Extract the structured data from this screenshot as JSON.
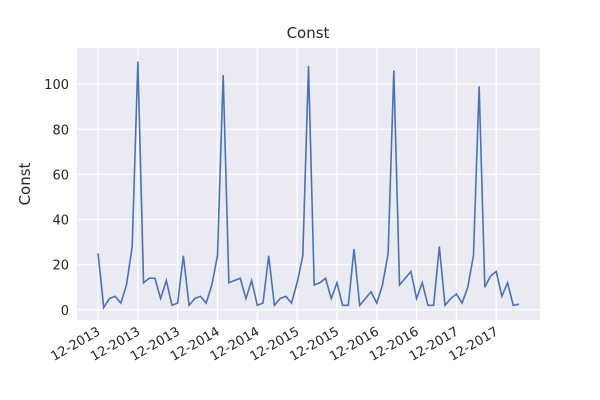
{
  "chart_data": {
    "type": "line",
    "title": "Const",
    "y_label": "Const",
    "series": [
      {
        "name": "Const",
        "color": "#4c72b0",
        "values": [
          25,
          1,
          5,
          6,
          3,
          11,
          28,
          110,
          12,
          14,
          14,
          5,
          13,
          2,
          3,
          24,
          2,
          5,
          6,
          3,
          11,
          24,
          104,
          12,
          13,
          14,
          5,
          13,
          2,
          3,
          24,
          2,
          5,
          6,
          3,
          12,
          24,
          108,
          11,
          12,
          14,
          5,
          12,
          2,
          2,
          27,
          2,
          5,
          8,
          3,
          11,
          25,
          106,
          11,
          14,
          17,
          5,
          12,
          2,
          2,
          28,
          2,
          5,
          7,
          3,
          10,
          24,
          99,
          10,
          15,
          17,
          6,
          12,
          2,
          2.5
        ]
      }
    ],
    "xlim": [
      -3.7,
      77.7
    ],
    "xticks": [
      {
        "value": 0,
        "label": "12-2013"
      },
      {
        "value": 7,
        "label": "12-2013"
      },
      {
        "value": 14,
        "label": "12-2013"
      },
      {
        "value": 21,
        "label": "12-2014"
      },
      {
        "value": 28,
        "label": "12-2014"
      },
      {
        "value": 35,
        "label": "12-2015"
      },
      {
        "value": 42,
        "label": "12-2015"
      },
      {
        "value": 49,
        "label": "12-2016"
      },
      {
        "value": 56,
        "label": "12-2016"
      },
      {
        "value": 63,
        "label": "12-2017"
      },
      {
        "value": 70,
        "label": "12-2017"
      }
    ],
    "ylim": [
      -4.5,
      116
    ],
    "yticks": [
      0,
      20,
      40,
      60,
      80,
      100
    ],
    "grid": true,
    "background": "#eaeaf2"
  }
}
